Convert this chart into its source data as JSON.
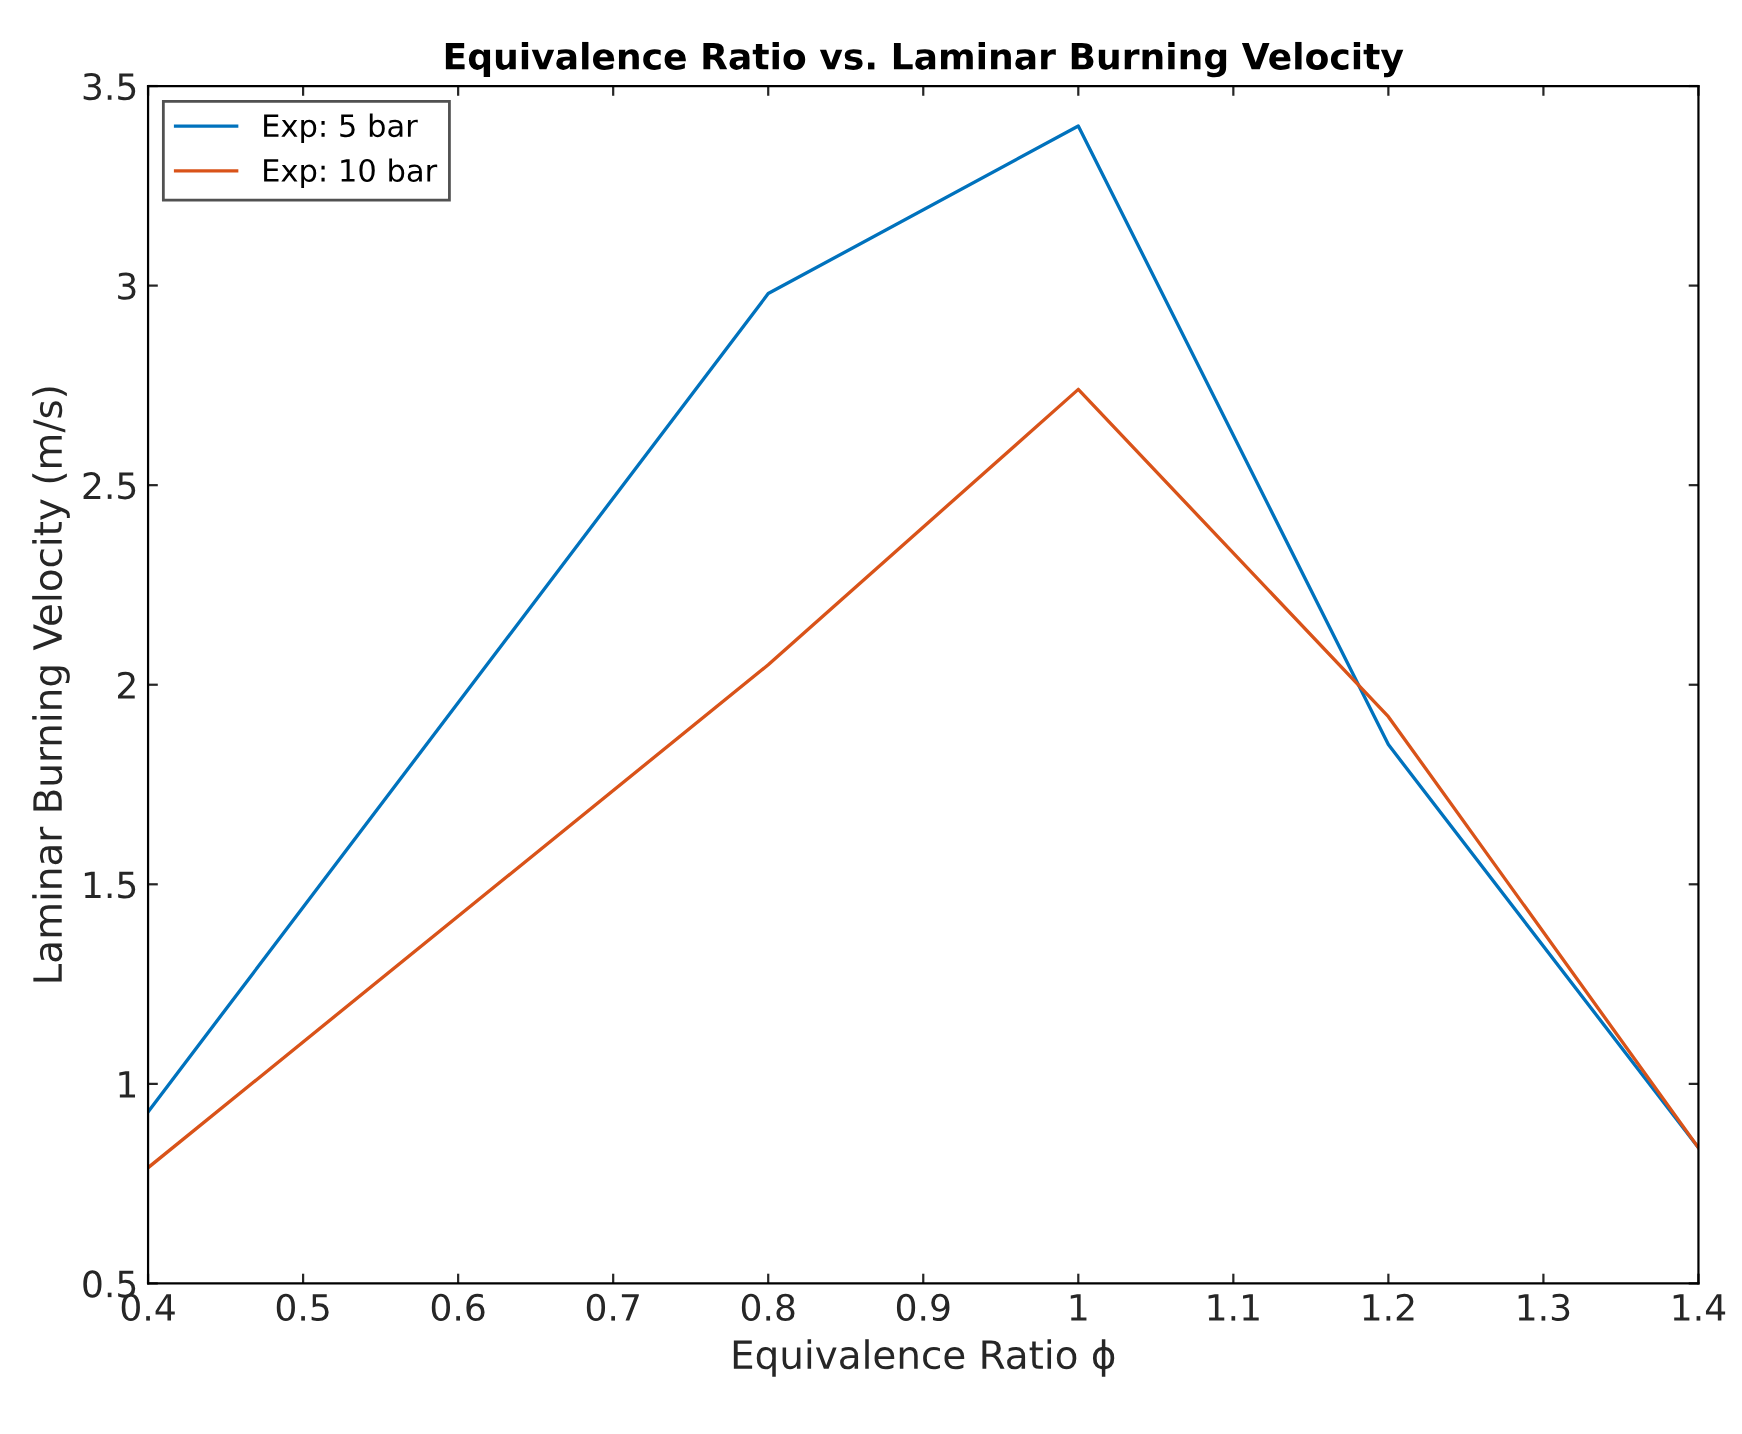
{
  "chart_data": {
    "type": "line",
    "title": "Equivalence Ratio vs. Laminar Burning Velocity",
    "xlabel": "Equivalence Ratio ϕ",
    "ylabel": "Laminar Burning Velocity (m/s)",
    "x": [
      0.4,
      0.8,
      1.0,
      1.2,
      1.4
    ],
    "series": [
      {
        "name": "Exp: 5 bar",
        "color": "#0072bd",
        "values": [
          0.93,
          2.98,
          3.4,
          1.85,
          0.84
        ]
      },
      {
        "name": "Exp: 10 bar",
        "color": "#d95319",
        "values": [
          0.79,
          2.05,
          2.74,
          1.92,
          0.84
        ]
      }
    ],
    "xlim": [
      0.4,
      1.4
    ],
    "xticks": [
      0.4,
      0.5,
      0.6,
      0.7,
      0.8,
      0.9,
      1,
      1.1,
      1.2,
      1.3,
      1.4
    ],
    "ylim": [
      0.5,
      3.5
    ],
    "yticks": [
      0.5,
      1,
      1.5,
      2,
      2.5,
      3,
      3.5
    ],
    "grid": false,
    "legend": "top left",
    "marker": "none",
    "line_style": "solid"
  }
}
